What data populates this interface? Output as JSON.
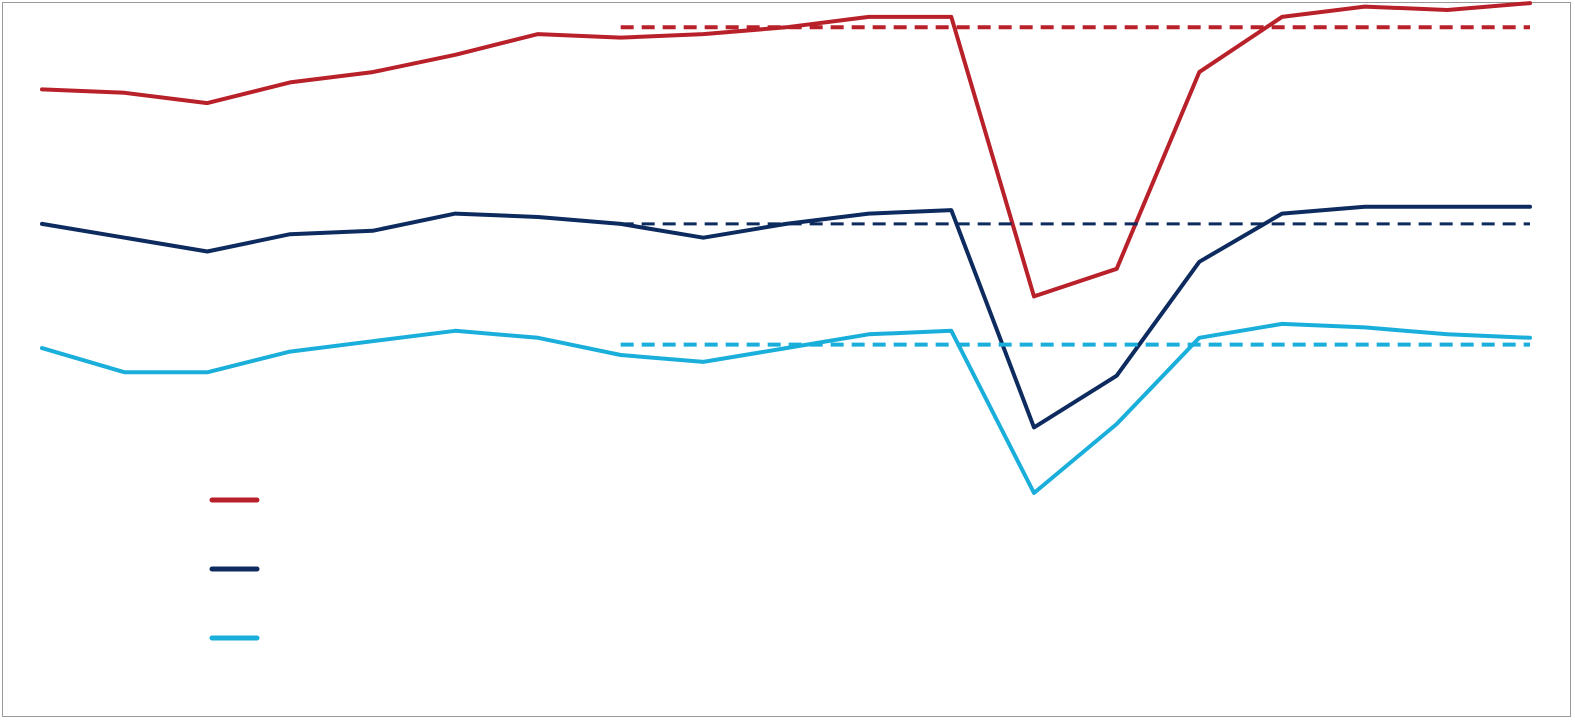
{
  "chart_data": {
    "type": "line",
    "title": "",
    "xlabel": "",
    "ylabel": "",
    "x": [
      1,
      2,
      3,
      4,
      5,
      6,
      7,
      8,
      9,
      10,
      11,
      12,
      13,
      14,
      15,
      16,
      17,
      18,
      19
    ],
    "ylim": [
      0,
      100
    ],
    "grid": false,
    "legend_position": "bottom-left",
    "series": [
      {
        "color": "#b8202a",
        "values": [
          88.5,
          88,
          86.5,
          89.5,
          91,
          93.5,
          96.5,
          96,
          96.5,
          97.5,
          99,
          99,
          58.5,
          62.5,
          91,
          99,
          100.5,
          100,
          101
        ],
        "reference": {
          "value": 97.5,
          "x_start": 8,
          "x_end": 19
        }
      },
      {
        "color": "#0d2b5e",
        "values": [
          69,
          67,
          65,
          67.5,
          68,
          70.5,
          70,
          69,
          67,
          69,
          70.5,
          71,
          39.5,
          47,
          63.5,
          70.5,
          71.5,
          71.5,
          71.5
        ],
        "reference": {
          "value": 69,
          "x_start": 8,
          "x_end": 19
        }
      },
      {
        "color": "#1aaedb",
        "values": [
          51,
          47.5,
          47.5,
          50.5,
          52,
          53.5,
          52.5,
          50,
          49,
          51,
          53,
          53.5,
          30,
          40,
          52.5,
          54.5,
          54,
          53,
          52.5
        ],
        "reference": {
          "value": 51.5,
          "x_start": 8,
          "x_end": 19
        }
      }
    ]
  }
}
